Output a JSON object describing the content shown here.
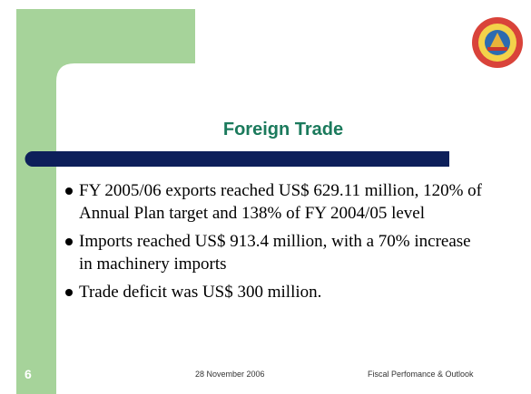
{
  "slide": {
    "title": "Foreign Trade",
    "bullets": [
      "FY 2005/06 exports reached US$ 629.11 million, 120% of Annual Plan target and 138% of FY 2004/05 level",
      "Imports  reached US$ 913.4 million, with a 70% increase in machinery imports",
      "Trade deficit was US$ 300 million."
    ],
    "footer": {
      "number": "6",
      "date": "28 November 2006",
      "caption": "Fiscal Perfomance & Outlook"
    }
  }
}
